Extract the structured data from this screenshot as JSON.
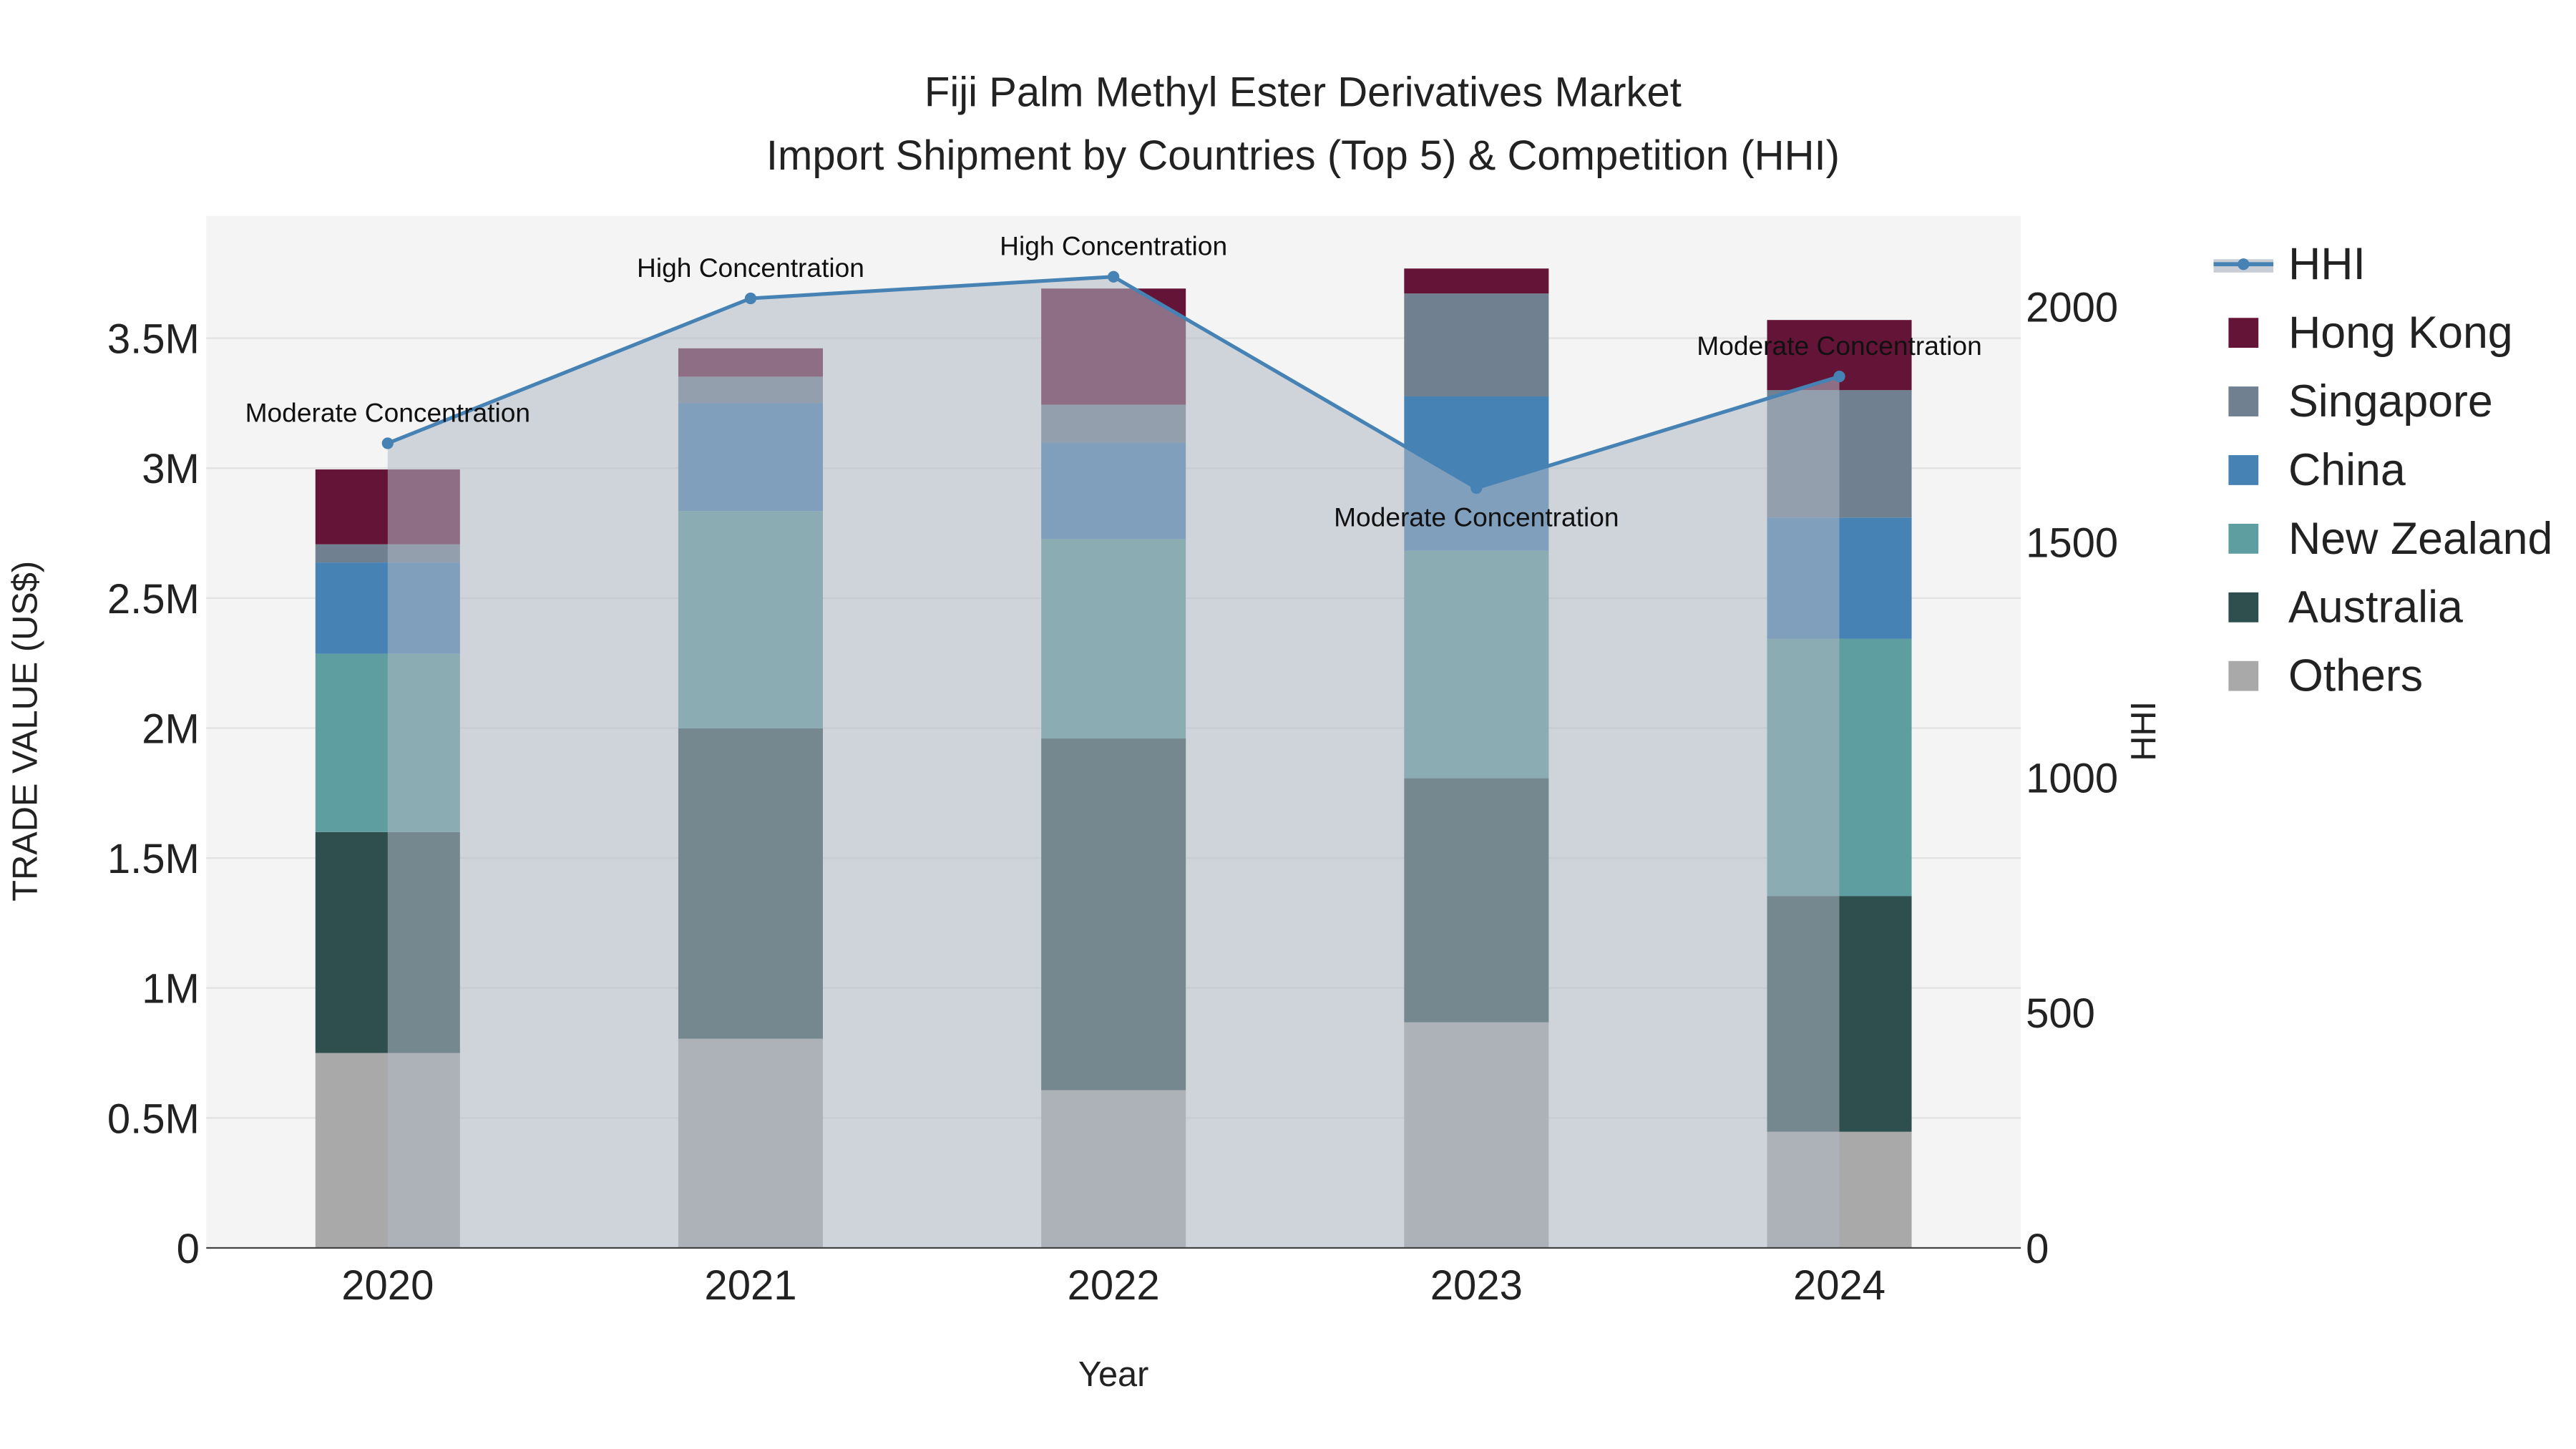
{
  "chart_data": {
    "type": "bar",
    "stacked": true,
    "title": "Fiji Palm Methyl Ester Derivatives Market",
    "subtitle": "Import Shipment by Countries (Top 5) & Competition (HHI)",
    "xlabel": "Year",
    "ylabel": "TRADE VALUE (US$)",
    "y2label": "HHI",
    "categories": [
      "2020",
      "2021",
      "2022",
      "2023",
      "2024"
    ],
    "ylim": [
      0,
      3970000
    ],
    "y2lim": [
      0,
      2193
    ],
    "yticks": [
      0,
      500000,
      1000000,
      1500000,
      2000000,
      2500000,
      3000000,
      3500000
    ],
    "ytick_labels": [
      "0",
      "0.5M",
      "1M",
      "1.5M",
      "2M",
      "2.5M",
      "3M",
      "3.5M"
    ],
    "y2ticks": [
      0,
      500,
      1000,
      1500,
      2000
    ],
    "y2tick_labels": [
      "0",
      "500",
      "1000",
      "1500",
      "2000"
    ],
    "series": [
      {
        "name": "Others",
        "color": "#A9A9A9",
        "values": [
          750000,
          805000,
          607000,
          868000,
          447000
        ]
      },
      {
        "name": "Australia",
        "color": "#2F4F4F",
        "values": [
          850000,
          1194000,
          1353000,
          939000,
          907000
        ]
      },
      {
        "name": "New Zealand",
        "color": "#5F9EA0",
        "values": [
          686000,
          836000,
          767000,
          875000,
          990000
        ]
      },
      {
        "name": "China",
        "color": "#4682B4",
        "values": [
          351000,
          415000,
          370000,
          594000,
          466000
        ]
      },
      {
        "name": "Singapore",
        "color": "#708090",
        "values": [
          70000,
          102000,
          147000,
          396000,
          490000
        ]
      },
      {
        "name": "Hong Kong",
        "color": "#641436",
        "values": [
          288000,
          109000,
          447000,
          96000,
          270000
        ]
      }
    ],
    "line": {
      "name": "HHI",
      "color": "#4682B4",
      "values": [
        1710,
        2018,
        2064,
        1615,
        1852
      ]
    },
    "annotations": [
      "Moderate Concentration",
      "High Concentration",
      "High Concentration",
      "Moderate Concentration",
      "Moderate Concentration"
    ],
    "legend": [
      "HHI",
      "Hong Kong",
      "Singapore",
      "China",
      "New Zealand",
      "Australia",
      "Others"
    ],
    "legend_position": "right",
    "grid": true
  }
}
